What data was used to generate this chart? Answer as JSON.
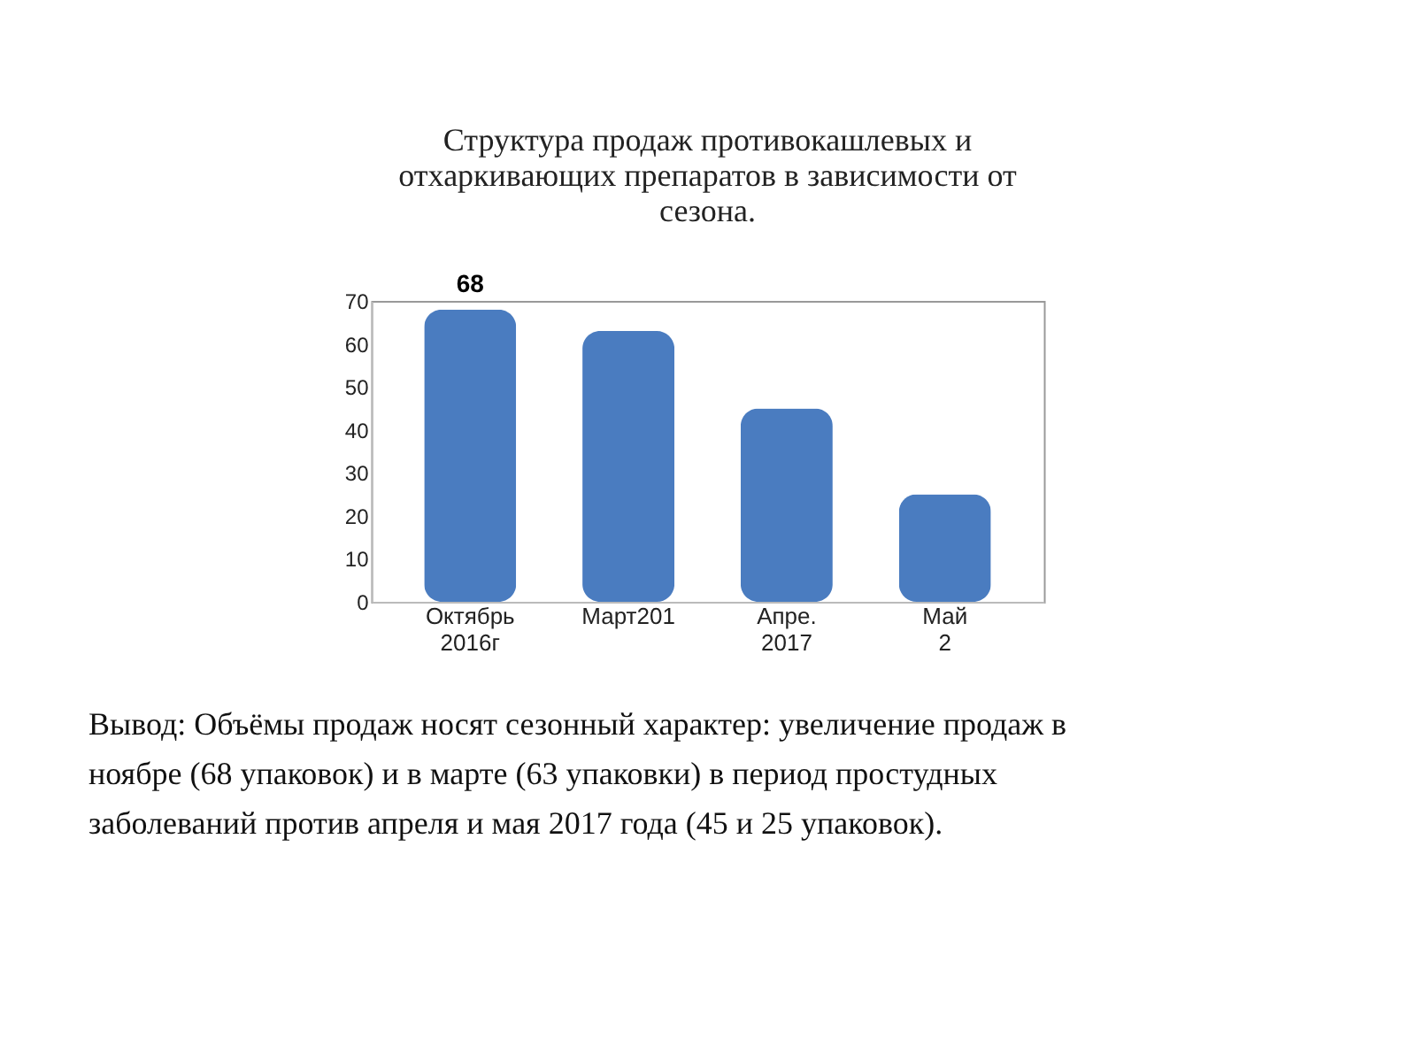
{
  "chart_data": {
    "type": "bar",
    "title": "Структура продаж противокашлевых и\nотхаркивающих препаратов в зависимости от\nсезона.",
    "categories": [
      "Октябрь 2016г",
      "Март201",
      "Апре. 2017",
      "Май 2"
    ],
    "values": [
      68,
      63,
      45,
      25
    ],
    "value_labels": [
      "68",
      null,
      null,
      null
    ],
    "color": "#4a7cc0",
    "ylim": [
      0,
      70
    ],
    "yticks": [
      0,
      10,
      20,
      30,
      40,
      50,
      60,
      70
    ],
    "grid": false,
    "annotations": [
      "Вывод: Объёмы продаж носят сезонный характер: увеличение продаж в\nноябре (68 упаковок) и в марте (63 упаковки) в период простудных\nзаболеваний против апреля и мая 2017 года (45 и 25 упаковок)."
    ]
  }
}
